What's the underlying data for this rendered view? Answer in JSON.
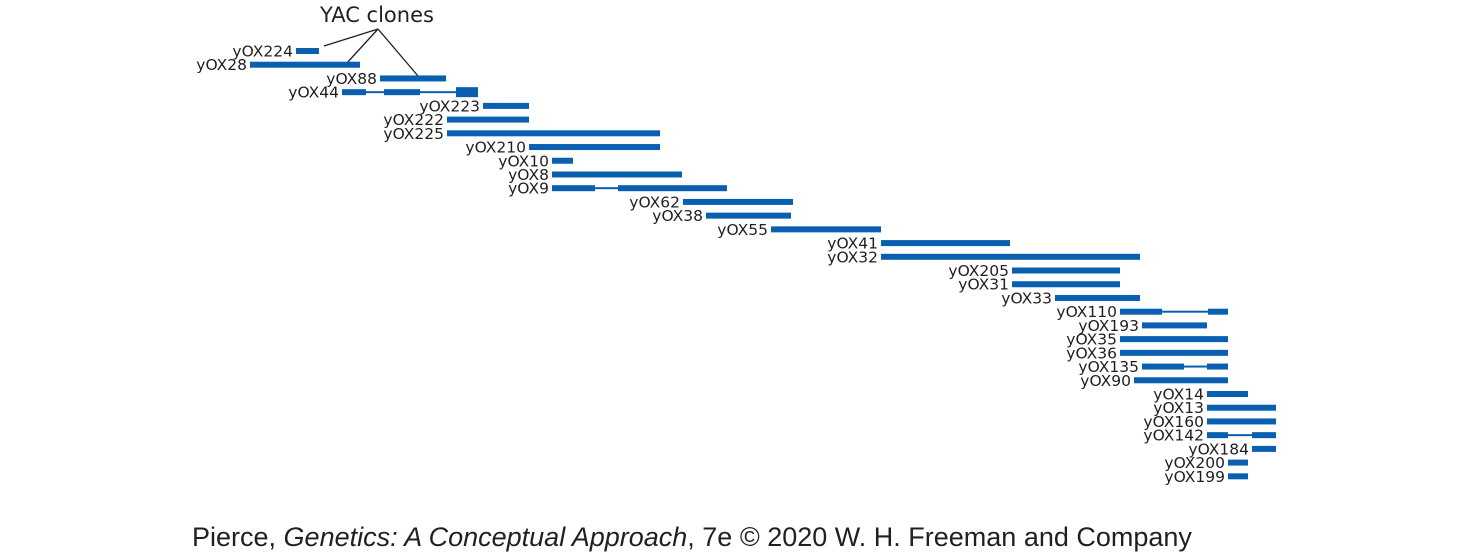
{
  "diagram": {
    "title": "YAC clones",
    "color": "#0a5fb0",
    "clones": [
      {
        "name": "yOX224",
        "segments": [
          [
            296,
            319
          ]
        ]
      },
      {
        "name": "yOX28",
        "segments": [
          [
            250,
            360
          ]
        ]
      },
      {
        "name": "yOX88",
        "segments": [
          [
            380,
            446
          ]
        ]
      },
      {
        "name": "yOX44",
        "segments": [
          [
            342,
            366,
            "thick"
          ],
          [
            366,
            384,
            "thin"
          ],
          [
            384,
            420,
            "thick"
          ],
          [
            420,
            456,
            "thin"
          ],
          [
            456,
            478,
            "heavy"
          ]
        ]
      },
      {
        "name": "yOX223",
        "segments": [
          [
            483,
            529
          ]
        ]
      },
      {
        "name": "yOX222",
        "segments": [
          [
            447,
            529
          ]
        ]
      },
      {
        "name": "yOX225",
        "segments": [
          [
            447,
            660
          ]
        ]
      },
      {
        "name": "yOX210",
        "segments": [
          [
            529,
            660
          ]
        ]
      },
      {
        "name": "yOX10",
        "segments": [
          [
            552,
            573
          ]
        ]
      },
      {
        "name": "yOX8",
        "segments": [
          [
            552,
            682
          ]
        ]
      },
      {
        "name": "yOX9",
        "segments": [
          [
            552,
            595,
            "thick"
          ],
          [
            595,
            618,
            "thin"
          ],
          [
            618,
            727,
            "thick"
          ]
        ]
      },
      {
        "name": "yOX62",
        "segments": [
          [
            683,
            793
          ]
        ]
      },
      {
        "name": "yOX38",
        "segments": [
          [
            706,
            791
          ]
        ]
      },
      {
        "name": "yOX55",
        "segments": [
          [
            771,
            881
          ]
        ]
      },
      {
        "name": "yOX41",
        "segments": [
          [
            881,
            1010
          ]
        ]
      },
      {
        "name": "yOX32",
        "segments": [
          [
            881,
            1140
          ]
        ]
      },
      {
        "name": "yOX205",
        "segments": [
          [
            1012,
            1120
          ]
        ]
      },
      {
        "name": "yOX31",
        "segments": [
          [
            1012,
            1120
          ]
        ]
      },
      {
        "name": "yOX33",
        "segments": [
          [
            1055,
            1140
          ]
        ]
      },
      {
        "name": "yOX110",
        "segments": [
          [
            1120,
            1162,
            "thick"
          ],
          [
            1162,
            1208,
            "thin"
          ],
          [
            1208,
            1228,
            "thick"
          ]
        ]
      },
      {
        "name": "yOX193",
        "segments": [
          [
            1142,
            1207
          ]
        ]
      },
      {
        "name": "yOX35",
        "segments": [
          [
            1120,
            1228
          ]
        ]
      },
      {
        "name": "yOX36",
        "segments": [
          [
            1120,
            1228
          ]
        ]
      },
      {
        "name": "yOX135",
        "segments": [
          [
            1142,
            1184,
            "thick"
          ],
          [
            1184,
            1207,
            "thin"
          ],
          [
            1207,
            1228,
            "thick"
          ]
        ]
      },
      {
        "name": "yOX90",
        "segments": [
          [
            1134,
            1228
          ]
        ]
      },
      {
        "name": "yOX14",
        "segments": [
          [
            1207,
            1248
          ]
        ]
      },
      {
        "name": "yOX13",
        "segments": [
          [
            1207,
            1276
          ]
        ]
      },
      {
        "name": "yOX160",
        "segments": [
          [
            1207,
            1276
          ]
        ]
      },
      {
        "name": "yOX142",
        "segments": [
          [
            1207,
            1228,
            "thick"
          ],
          [
            1228,
            1252,
            "thin"
          ],
          [
            1252,
            1276,
            "thick"
          ]
        ]
      },
      {
        "name": "yOX184",
        "segments": [
          [
            1252,
            1276
          ]
        ]
      },
      {
        "name": "yOX200",
        "segments": [
          [
            1228,
            1248
          ]
        ]
      },
      {
        "name": "yOX199",
        "segments": [
          [
            1228,
            1248
          ]
        ]
      }
    ]
  },
  "credit": {
    "author": "Pierce, ",
    "book": "Genetics: A Conceptual Approach",
    "rest": ", 7e © 2020 W. H. Freeman and Company"
  }
}
